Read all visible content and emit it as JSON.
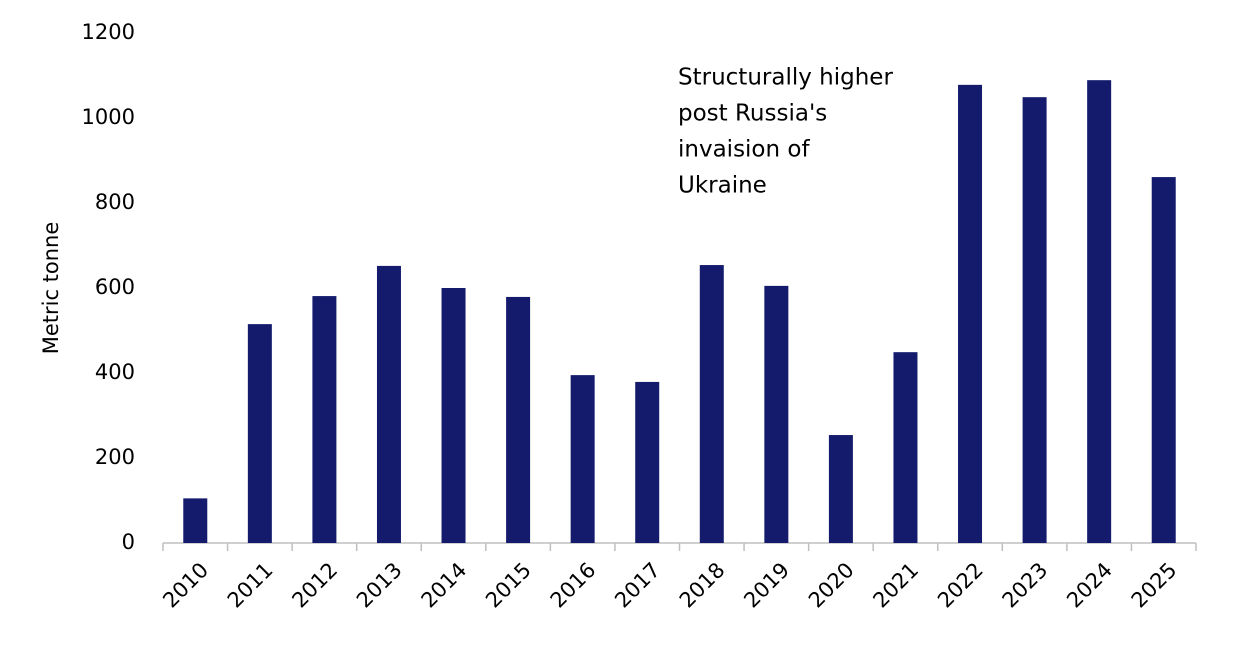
{
  "chart_data": {
    "type": "bar",
    "y_label": "Metric tonne",
    "annotation": [
      "Structurally higher",
      "post Russia's",
      "invaision of",
      "Ukraine"
    ],
    "categories": [
      "2010",
      "2011",
      "2012",
      "2013",
      "2014",
      "2015",
      "2016",
      "2017",
      "2018",
      "2019",
      "2020",
      "2021",
      "2022",
      "2023",
      "2024",
      "2025"
    ],
    "values": [
      105,
      515,
      581,
      652,
      600,
      579,
      395,
      379,
      654,
      605,
      254,
      449,
      1078,
      1049,
      1089,
      861
    ],
    "color": "#141b6d",
    "ylim": [
      0,
      1200
    ],
    "yticks": [
      0,
      200,
      400,
      600,
      800,
      1000,
      1200
    ],
    "grid": false
  }
}
